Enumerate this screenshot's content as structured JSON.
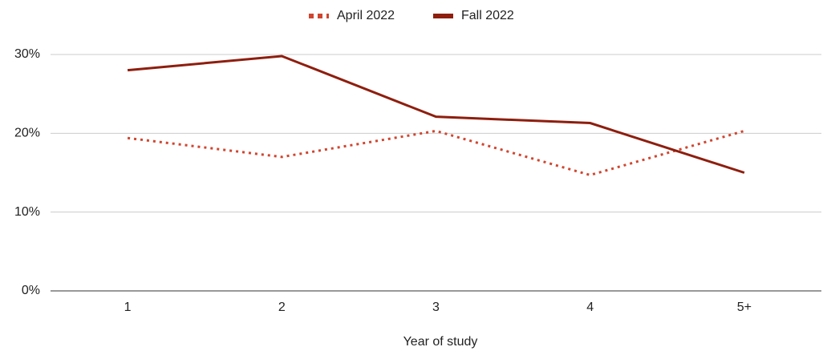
{
  "chart_data": {
    "type": "line",
    "x_label": "Year of study",
    "categories": [
      "1",
      "2",
      "3",
      "4",
      "5+"
    ],
    "series": [
      {
        "name": "April 2022",
        "color": "#d0452f",
        "style": "dotted",
        "values": [
          19.4,
          17.0,
          20.3,
          14.7,
          20.3
        ]
      },
      {
        "name": "Fall 2022",
        "color": "#8e1e0e",
        "style": "solid",
        "values": [
          28.0,
          29.8,
          22.1,
          21.3,
          15.0
        ]
      }
    ],
    "ylim": [
      0,
      30
    ],
    "yticks": [
      {
        "value": 0,
        "label": "0%"
      },
      {
        "value": 10,
        "label": "10%"
      },
      {
        "value": 20,
        "label": "20%"
      },
      {
        "value": 30,
        "label": "30%"
      }
    ],
    "grid": true,
    "legend": "top"
  }
}
